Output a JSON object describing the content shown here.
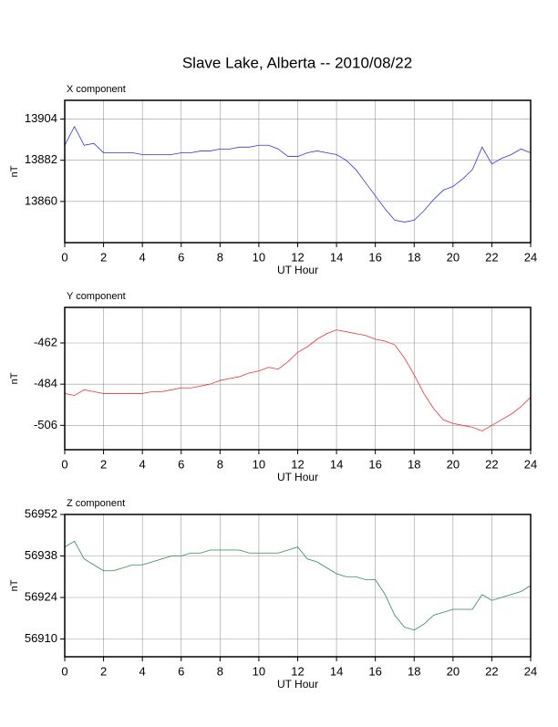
{
  "title": "Slave Lake, Alberta -- 2010/08/22",
  "chart_data": [
    {
      "type": "line",
      "title": "X component",
      "xlabel": "UT Hour",
      "ylabel": "nT",
      "color": "#3333ee",
      "grid": true,
      "x": [
        0,
        0.5,
        1,
        1.5,
        2,
        2.5,
        3,
        3.5,
        4,
        4.5,
        5,
        5.5,
        6,
        6.5,
        7,
        7.5,
        8,
        8.5,
        9,
        9.5,
        10,
        10.5,
        11,
        11.5,
        12,
        12.5,
        13,
        13.5,
        14,
        14.5,
        15,
        15.5,
        16,
        16.5,
        17,
        17.5,
        18,
        18.5,
        19,
        19.5,
        20,
        20.5,
        21,
        21.5,
        22,
        22.5,
        23,
        23.5,
        24
      ],
      "values": [
        13890,
        13900,
        13890,
        13891,
        13886,
        13886,
        13886,
        13886,
        13885,
        13885,
        13885,
        13885,
        13886,
        13886,
        13887,
        13887,
        13888,
        13888,
        13889,
        13889,
        13890,
        13890,
        13888,
        13884,
        13884,
        13886,
        13887,
        13886,
        13885,
        13882,
        13877,
        13870,
        13863,
        13856,
        13850,
        13849,
        13850,
        13855,
        13861,
        13866,
        13868,
        13872,
        13877,
        13889,
        13880,
        13883,
        13885,
        13888,
        13886
      ],
      "xlim": [
        0,
        24
      ],
      "xticks": [
        0,
        2,
        4,
        6,
        8,
        10,
        12,
        14,
        16,
        18,
        20,
        22,
        24
      ],
      "ylim": [
        13838,
        13914
      ],
      "yticks": [
        13860,
        13882,
        13904
      ]
    },
    {
      "type": "line",
      "title": "Y component",
      "xlabel": "UT Hour",
      "ylabel": "nT",
      "color": "#ee3333",
      "grid": true,
      "x": [
        0,
        0.5,
        1,
        1.5,
        2,
        2.5,
        3,
        3.5,
        4,
        4.5,
        5,
        5.5,
        6,
        6.5,
        7,
        7.5,
        8,
        8.5,
        9,
        9.5,
        10,
        10.5,
        11,
        11.5,
        12,
        12.5,
        13,
        13.5,
        14,
        14.5,
        15,
        15.5,
        16,
        16.5,
        17,
        17.5,
        18,
        18.5,
        19,
        19.5,
        20,
        20.5,
        21,
        21.5,
        22,
        22.5,
        23,
        23.5,
        24
      ],
      "values": [
        -489,
        -490,
        -487,
        -488,
        -489,
        -489,
        -489,
        -489,
        -489,
        -488,
        -488,
        -487,
        -486,
        -486,
        -485,
        -484,
        -482,
        -481,
        -480,
        -478,
        -477,
        -475,
        -476,
        -472,
        -467,
        -464,
        -460,
        -457,
        -455,
        -456,
        -457,
        -458,
        -460,
        -461,
        -463,
        -470,
        -479,
        -489,
        -497,
        -503,
        -505,
        -506,
        -507,
        -509,
        -506,
        -503,
        -500,
        -496,
        -491
      ],
      "xlim": [
        0,
        24
      ],
      "xticks": [
        0,
        2,
        4,
        6,
        8,
        10,
        12,
        14,
        16,
        18,
        20,
        22,
        24
      ],
      "ylim": [
        -519,
        -443
      ],
      "yticks": [
        -506,
        -484,
        -462
      ]
    },
    {
      "type": "line",
      "title": "Z component",
      "xlabel": "UT Hour",
      "ylabel": "nT",
      "color": "#2e8b57",
      "grid": true,
      "x": [
        0,
        0.5,
        1,
        1.5,
        2,
        2.5,
        3,
        3.5,
        4,
        4.5,
        5,
        5.5,
        6,
        6.5,
        7,
        7.5,
        8,
        8.5,
        9,
        9.5,
        10,
        10.5,
        11,
        11.5,
        12,
        12.5,
        13,
        13.5,
        14,
        14.5,
        15,
        15.5,
        16,
        16.5,
        17,
        17.5,
        18,
        18.5,
        19,
        19.5,
        20,
        20.5,
        21,
        21.5,
        22,
        22.5,
        23,
        23.5,
        24
      ],
      "values": [
        56941,
        56943,
        56937,
        56935,
        56933,
        56933,
        56934,
        56935,
        56935,
        56936,
        56937,
        56938,
        56938,
        56939,
        56939,
        56940,
        56940,
        56940,
        56940,
        56939,
        56939,
        56939,
        56939,
        56940,
        56941,
        56937,
        56936,
        56934,
        56932,
        56931,
        56931,
        56930,
        56930,
        56925,
        56918,
        56914,
        56913,
        56915,
        56918,
        56919,
        56920,
        56920,
        56920,
        56925,
        56923,
        56924,
        56925,
        56926,
        56928
      ],
      "xlim": [
        0,
        24
      ],
      "xticks": [
        0,
        2,
        4,
        6,
        8,
        10,
        12,
        14,
        16,
        18,
        20,
        22,
        24
      ],
      "ylim": [
        56904,
        56952
      ],
      "yticks": [
        56910,
        56924,
        56938,
        56952
      ]
    }
  ]
}
